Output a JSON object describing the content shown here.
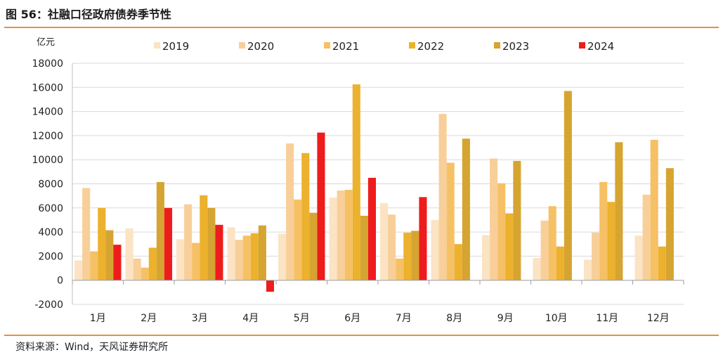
{
  "figure_title": "图 56：社融口径政府债券季节性",
  "source": "资料来源：Wind，天风证券研究所",
  "colors": {
    "2019": "#fbe3c4",
    "2020": "#f8cf99",
    "2021": "#f6c065",
    "2022": "#ecb12d",
    "2023": "#d6a431",
    "2024": "#ee1c1c",
    "rule": "#e8913a",
    "grid": "#d9d9d9"
  },
  "chart_data": {
    "type": "bar",
    "ylabel": "亿元",
    "ylim": [
      -2000,
      18000
    ],
    "yticks": [
      -2000,
      0,
      2000,
      4000,
      6000,
      8000,
      10000,
      12000,
      14000,
      16000,
      18000
    ],
    "grid": true,
    "legend_position": "top",
    "categories": [
      "1月",
      "2月",
      "3月",
      "4月",
      "5月",
      "6月",
      "7月",
      "8月",
      "9月",
      "10月",
      "11月",
      "12月"
    ],
    "series": [
      {
        "name": "2019",
        "values": [
          1650,
          4300,
          3400,
          4400,
          3850,
          6850,
          6400,
          5000,
          3750,
          1850,
          1700,
          3700
        ]
      },
      {
        "name": "2020",
        "values": [
          7650,
          1800,
          6300,
          3350,
          11350,
          7450,
          5450,
          13800,
          10100,
          4950,
          3950,
          7100
        ]
      },
      {
        "name": "2021",
        "values": [
          2400,
          1050,
          3100,
          3700,
          6700,
          7500,
          1800,
          9750,
          8050,
          6150,
          8150,
          11650
        ]
      },
      {
        "name": "2022",
        "values": [
          6000,
          2700,
          7050,
          3900,
          10550,
          16250,
          3950,
          3000,
          5550,
          2800,
          6500,
          2800
        ]
      },
      {
        "name": "2023",
        "values": [
          4150,
          8150,
          6000,
          4550,
          5600,
          5350,
          4100,
          11750,
          9900,
          15700,
          11450,
          9300
        ]
      },
      {
        "name": "2024",
        "values": [
          2950,
          6000,
          4600,
          -950,
          12250,
          8500,
          6900,
          null,
          null,
          null,
          null,
          null
        ]
      }
    ]
  }
}
